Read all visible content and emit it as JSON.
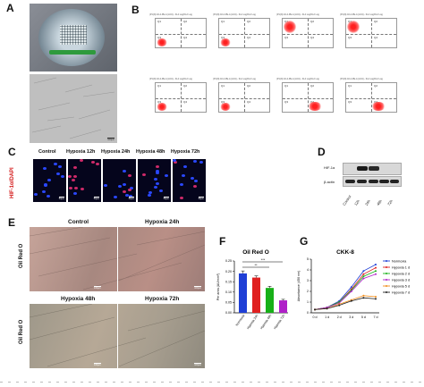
{
  "panels": {
    "A": "A",
    "B": "B",
    "C": "C",
    "D": "D",
    "E": "E",
    "F": "F",
    "G": "G"
  },
  "panelA": {
    "scale_bar": "100μm"
  },
  "panelB": {
    "header": "(P1(N) 02-4-PE-A (LN4) - FL4 Log/FL2 Log",
    "plots": [
      {
        "quads": [
          "Q1",
          "Q2",
          "Q3",
          "Q4"
        ],
        "cluster": "bottom-left"
      },
      {
        "quads": [
          "Q1",
          "Q2",
          "Q3",
          "Q4"
        ],
        "cluster": "bottom-left"
      },
      {
        "quads": [
          "Q1",
          "Q2",
          "Q3",
          "Q4"
        ],
        "cluster": "top-left"
      },
      {
        "quads": [
          "Q1",
          "Q2",
          "Q3",
          "Q4"
        ],
        "cluster": "top-left"
      },
      {
        "quads": [
          "Q1",
          "Q2",
          "Q3",
          "Q4"
        ],
        "cluster": "bottom-left"
      },
      {
        "quads": [
          "Q1",
          "Q2",
          "Q3",
          "Q4"
        ],
        "cluster": "bottom-left"
      },
      {
        "quads": [
          "Q1",
          "Q2",
          "Q3",
          "Q4"
        ],
        "cluster": "bottom-right"
      },
      {
        "quads": [
          "Q1",
          "Q2",
          "Q3",
          "Q4"
        ],
        "cluster": "bottom-right"
      }
    ]
  },
  "panelC": {
    "ylabel": "HIF-1α/DAPI",
    "columns": [
      "Control",
      "Hypoxia 12h",
      "Hypoxia 24h",
      "Hypoxia 48h",
      "Hypoxia 72h"
    ],
    "scale_bar": "50μm"
  },
  "panelD": {
    "rows": [
      "HIF-1α",
      "β-actin"
    ],
    "lanes": [
      "Control",
      "12h",
      "24h",
      "48h",
      "72h"
    ]
  },
  "panelE": {
    "ylabel": "Oil Red O",
    "titles": [
      "Control",
      "Hypoxia 24h",
      "Hypoxia 48h",
      "Hypoxia 72h"
    ],
    "scale_bar": "100μm"
  },
  "chart_data": [
    {
      "type": "bar",
      "title": "Oil Red O",
      "ylabel": "Per area (AU/mm²)",
      "categories": [
        "Normoxia",
        "Hypoxia 24h",
        "Hypoxia 48h",
        "Hypoxia 72h"
      ],
      "values": [
        0.19,
        0.17,
        0.12,
        0.06
      ],
      "errors": [
        0.012,
        0.008,
        0.008,
        0.005
      ],
      "colors": [
        "#1f3fd6",
        "#e02020",
        "#18b018",
        "#b020c8"
      ],
      "ylim": [
        0,
        0.25
      ],
      "yticks": [
        "0.00",
        "0.05",
        "0.10",
        "0.15",
        "0.20",
        "0.25"
      ],
      "significance": [
        "**",
        "***"
      ]
    },
    {
      "type": "line",
      "title": "CKK-8",
      "ylabel": "Absorbance (450 nm)",
      "x": [
        "0 d",
        "1 d",
        "2 d",
        "3 d",
        "5 d",
        "7 d"
      ],
      "ylim": [
        0,
        5
      ],
      "yticks": [
        "0",
        "1",
        "2",
        "3",
        "4",
        "5"
      ],
      "series": [
        {
          "name": "Normoxia",
          "color": "#1f3fd6",
          "values": [
            0.3,
            0.5,
            1.1,
            2.4,
            3.9,
            4.5
          ]
        },
        {
          "name": "Hypoxia 1 d",
          "color": "#e02020",
          "values": [
            0.3,
            0.5,
            1.0,
            2.2,
            3.6,
            4.2
          ]
        },
        {
          "name": "Hypoxia 2 d",
          "color": "#18b018",
          "values": [
            0.3,
            0.5,
            1.0,
            2.1,
            3.4,
            3.9
          ]
        },
        {
          "name": "Hypoxia 3 d",
          "color": "#b020c8",
          "values": [
            0.3,
            0.5,
            0.9,
            2.0,
            3.2,
            3.6
          ]
        },
        {
          "name": "Hypoxia 5 d",
          "color": "#f08c1a",
          "values": [
            0.3,
            0.4,
            0.8,
            1.2,
            1.6,
            1.5
          ]
        },
        {
          "name": "Hypoxia 7 d",
          "color": "#222222",
          "values": [
            0.3,
            0.4,
            0.7,
            1.1,
            1.4,
            1.3
          ]
        }
      ]
    }
  ]
}
